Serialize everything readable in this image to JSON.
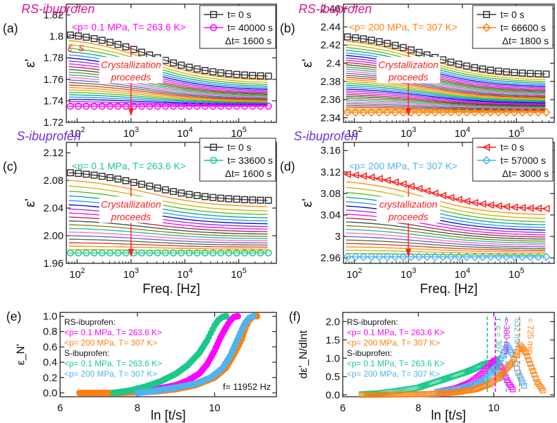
{
  "figure": {
    "colors": {
      "rs": "#e4148c",
      "s": "#7030e0",
      "magenta": "#ff00ff",
      "orange": "#ff7f0e",
      "green": "#19c98a",
      "skyblue": "#4fb3f0",
      "arrow": "#ff2020",
      "text_red": "#ff2020"
    }
  },
  "chart_data": [
    {
      "id": "a",
      "panel_label": "(a)",
      "type": "line",
      "title": "RS-ibuprofen",
      "condition": "<p= 0.1 MPa, T= 263.6 K>",
      "xlabel": "",
      "ylabel": "ε'",
      "xscale": "log",
      "xlim": [
        63,
        500000
      ],
      "ylim": [
        1.72,
        1.83
      ],
      "xticks": [
        {
          "v": 100,
          "b": "10",
          "e": "2"
        },
        {
          "v": 1000,
          "b": "10",
          "e": "3"
        },
        {
          "v": 10000,
          "b": "10",
          "e": "4"
        },
        {
          "v": 100000,
          "b": "10",
          "e": "5"
        }
      ],
      "yticks": [
        {
          "v": 1.72,
          "t": "1.72"
        },
        {
          "v": 1.74,
          "t": "1.74"
        },
        {
          "v": 1.76,
          "t": "1.76"
        },
        {
          "v": 1.78,
          "t": "1.78"
        },
        {
          "v": 1.8,
          "t": "1.8"
        },
        {
          "v": 1.82,
          "t": "1.82"
        }
      ],
      "legend": [
        {
          "label": "t= 0 s",
          "marker": "square",
          "color": "#333333"
        },
        {
          "label": "t= 40000 s",
          "marker": "circle",
          "color": "#ff00ff"
        },
        {
          "label": "Δt= 1600 s",
          "marker": "none"
        }
      ],
      "annotations": [
        "ε_s",
        "Crystallization",
        "proceeds"
      ],
      "series": [
        {
          "name": "t= 0 s",
          "marker": "square",
          "color": "#333333",
          "y_low": 1.805,
          "y_high": 1.762
        },
        {
          "name": "t= 40000 s",
          "marker": "circle",
          "color": "#ff00ff",
          "y_low": 1.735,
          "y_high": 1.735
        }
      ],
      "intermediate_curves": 24
    },
    {
      "id": "b",
      "panel_label": "(b)",
      "type": "line",
      "title": "RS-ibuprofen",
      "condition": "<p= 200 MPa, T= 307 K>",
      "xlabel": "",
      "ylabel": "ε'",
      "xscale": "log",
      "xlim": [
        63,
        500000
      ],
      "ylim": [
        2.335,
        2.465
      ],
      "xticks": [
        {
          "v": 100,
          "b": "10",
          "e": "2"
        },
        {
          "v": 1000,
          "b": "10",
          "e": "3"
        },
        {
          "v": 10000,
          "b": "10",
          "e": "4"
        },
        {
          "v": 100000,
          "b": "10",
          "e": "5"
        }
      ],
      "yticks": [
        {
          "v": 2.34,
          "t": "2.34"
        },
        {
          "v": 2.36,
          "t": "2.36"
        },
        {
          "v": 2.38,
          "t": "2.38"
        },
        {
          "v": 2.4,
          "t": "2.4"
        },
        {
          "v": 2.42,
          "t": "2.42"
        },
        {
          "v": 2.44,
          "t": "2.44"
        },
        {
          "v": 2.46,
          "t": "2.46"
        }
      ],
      "legend": [
        {
          "label": "t= 0 s",
          "marker": "square",
          "color": "#333333"
        },
        {
          "label": "t= 66600 s",
          "marker": "diamond",
          "color": "#ff7f0e"
        },
        {
          "label": "Δt= 1800 s",
          "marker": "none"
        }
      ],
      "annotations": [
        "Crystallization",
        "proceeds"
      ],
      "series": [
        {
          "name": "t= 0 s",
          "marker": "square",
          "color": "#333333",
          "y_low": 2.433,
          "y_high": 2.387
        },
        {
          "name": "t= 66600 s",
          "marker": "diamond",
          "color": "#ff7f0e",
          "y_low": 2.346,
          "y_high": 2.346
        }
      ],
      "intermediate_curves": 34
    },
    {
      "id": "c",
      "panel_label": "(c)",
      "type": "line",
      "title": "S-ibuprofen",
      "condition": "<p= 0.1 MPa, T= 263.6 K>",
      "xlabel": "Freq. [Hz]",
      "ylabel": "ε'",
      "xscale": "log",
      "xlim": [
        63,
        500000
      ],
      "ylim": [
        1.96,
        2.135
      ],
      "xticks": [
        {
          "v": 100,
          "b": "10",
          "e": "2"
        },
        {
          "v": 1000,
          "b": "10",
          "e": "3"
        },
        {
          "v": 10000,
          "b": "10",
          "e": "4"
        },
        {
          "v": 100000,
          "b": "10",
          "e": "5"
        }
      ],
      "yticks": [
        {
          "v": 1.96,
          "t": "1.96"
        },
        {
          "v": 2.0,
          "t": "2.00"
        },
        {
          "v": 2.04,
          "t": "2.04"
        },
        {
          "v": 2.08,
          "t": "2.08"
        },
        {
          "v": 2.12,
          "t": "2.12"
        }
      ],
      "legend": [
        {
          "label": "t= 0 s",
          "marker": "square",
          "color": "#333333"
        },
        {
          "label": "t= 33600 s",
          "marker": "circle",
          "color": "#19c98a"
        },
        {
          "label": "Δt= 1600 s",
          "marker": "none"
        }
      ],
      "annotations": [
        "Crystallization",
        "proceeds"
      ],
      "series": [
        {
          "name": "t= 0 s",
          "marker": "square",
          "color": "#333333",
          "y_low": 2.095,
          "y_high": 2.05
        },
        {
          "name": "t= 33600 s",
          "marker": "circle",
          "color": "#19c98a",
          "y_low": 1.975,
          "y_high": 1.975
        }
      ],
      "intermediate_curves": 18
    },
    {
      "id": "d",
      "panel_label": "(d)",
      "type": "line",
      "title": "S-ibuprofen",
      "condition": "<p= 200 MPa, T= 307 K>",
      "xlabel": "Freq. [Hz]",
      "ylabel": "ε'",
      "xscale": "log",
      "xlim": [
        63,
        500000
      ],
      "ylim": [
        2.95,
        3.175
      ],
      "xticks": [
        {
          "v": 100,
          "b": "10",
          "e": "2"
        },
        {
          "v": 1000,
          "b": "10",
          "e": "3"
        },
        {
          "v": 10000,
          "b": "10",
          "e": "4"
        },
        {
          "v": 100000,
          "b": "10",
          "e": "5"
        }
      ],
      "yticks": [
        {
          "v": 2.96,
          "t": "2.96"
        },
        {
          "v": 3.0,
          "t": "3"
        },
        {
          "v": 3.04,
          "t": "3.04"
        },
        {
          "v": 3.08,
          "t": "3.08"
        },
        {
          "v": 3.12,
          "t": "3.12"
        },
        {
          "v": 3.16,
          "t": "3.16"
        }
      ],
      "legend": [
        {
          "label": "t= 0 s",
          "marker": "triangle-left",
          "color": "#ff2020"
        },
        {
          "label": "t= 57000 s",
          "marker": "diamond",
          "color": "#4fb3f0"
        },
        {
          "label": "Δt= 3000 s",
          "marker": "none"
        }
      ],
      "annotations": [
        "crystallization",
        "proceeds"
      ],
      "series": [
        {
          "name": "t= 0 s",
          "marker": "triangle-left",
          "color": "#ff2020",
          "y_low": 3.122,
          "y_high": 3.05
        },
        {
          "name": "t= 57000 s",
          "marker": "diamond",
          "color": "#4fb3f0",
          "y_low": 2.962,
          "y_high": 2.962
        }
      ],
      "intermediate_curves": 19
    },
    {
      "id": "e",
      "panel_label": "(e)",
      "type": "scatter",
      "xlabel": "ln [t/s]",
      "ylabel": "ε_N'",
      "xlim": [
        6,
        11.6
      ],
      "ylim": [
        -0.05,
        1.05
      ],
      "xticks": [
        {
          "v": 6,
          "t": "6"
        },
        {
          "v": 8,
          "t": "8"
        },
        {
          "v": 10,
          "t": "10"
        }
      ],
      "yticks": [
        {
          "v": 0.0,
          "t": "0.0"
        },
        {
          "v": 0.2,
          "t": "0.2"
        },
        {
          "v": 0.4,
          "t": "0.4"
        },
        {
          "v": 0.6,
          "t": "0.6"
        },
        {
          "v": 0.8,
          "t": "0.8"
        },
        {
          "v": 1.0,
          "t": "1.0"
        }
      ],
      "legend_text": [
        "RS-ibuprofen:",
        "<p= 0.1 MPa, T= 263.6 K>",
        "<p= 200 MPa, T= 307 K>",
        "S-ibuprofen:",
        "<p= 0.1 MPa, T= 263.6 K>",
        "<p= 200 MPa, T= 307 K>"
      ],
      "annotations": [
        "f= 11952 Hz"
      ],
      "series": [
        {
          "name": "RS 0.1 MPa, 263.6 K",
          "color": "#ff00ff",
          "x": [
            7.38,
            7.8,
            8.2,
            8.6,
            9.0,
            9.3,
            9.6,
            9.8,
            10.0,
            10.15,
            10.3,
            10.4,
            10.5,
            10.6
          ],
          "y": [
            0.0,
            0.01,
            0.03,
            0.06,
            0.1,
            0.16,
            0.25,
            0.37,
            0.55,
            0.72,
            0.86,
            0.94,
            0.99,
            1.0
          ]
        },
        {
          "name": "RS 200 MPa, 307 K",
          "color": "#ff7f0e",
          "x": [
            6.5,
            7.5,
            8.0,
            8.5,
            9.0,
            9.5,
            10.0,
            10.3,
            10.5,
            10.7,
            10.8,
            10.9,
            11.0,
            11.1
          ],
          "y": [
            0.0,
            0.0,
            0.01,
            0.02,
            0.05,
            0.1,
            0.2,
            0.33,
            0.5,
            0.7,
            0.85,
            0.95,
            1.0,
            1.0
          ]
        },
        {
          "name": "S 0.1 MPa, 263.6 K",
          "color": "#19c98a",
          "x": [
            7.38,
            7.8,
            8.2,
            8.6,
            9.0,
            9.3,
            9.6,
            9.8,
            9.9,
            10.0,
            10.1,
            10.2,
            10.3
          ],
          "y": [
            0.0,
            0.03,
            0.08,
            0.15,
            0.25,
            0.36,
            0.52,
            0.68,
            0.78,
            0.88,
            0.95,
            0.99,
            1.0
          ]
        },
        {
          "name": "S 200 MPa, 307 K",
          "color": "#4fb3f0",
          "x": [
            8.0,
            8.5,
            9.0,
            9.5,
            9.9,
            10.2,
            10.4,
            10.55,
            10.7,
            10.8,
            10.9,
            11.0
          ],
          "y": [
            0.0,
            0.03,
            0.07,
            0.12,
            0.2,
            0.32,
            0.48,
            0.65,
            0.82,
            0.92,
            0.98,
            1.0
          ]
        }
      ]
    },
    {
      "id": "f",
      "panel_label": "(f)",
      "type": "scatter",
      "xlabel": "ln [t/s]",
      "ylabel": "dε'_N/dlnt",
      "xlim": [
        6,
        11.6
      ],
      "ylim": [
        -0.05,
        2.25
      ],
      "xticks": [
        {
          "v": 6,
          "t": "6"
        },
        {
          "v": 8,
          "t": "8"
        },
        {
          "v": 10,
          "t": "10"
        }
      ],
      "yticks": [
        {
          "v": 0.0,
          "t": "0.0"
        },
        {
          "v": 0.5,
          "t": "0.5"
        },
        {
          "v": 1.0,
          "t": "1.0"
        },
        {
          "v": 1.5,
          "t": "1.5"
        },
        {
          "v": 2.0,
          "t": "2.0"
        }
      ],
      "legend_text": [
        "RS-ibuprofen:",
        "<p= 0.1 MPa, T= 263.6 K>",
        "<p= 200 MPa, T= 307 K>",
        "S-ibuprofen:",
        "<p= 0.1 MPa, T= 263.6 K>",
        "<p= 200 MPa, T= 307 K>"
      ],
      "tau_labels": [
        {
          "x": 9.83,
          "label": "τ_c = 307 min",
          "color": "#19c98a"
        },
        {
          "x": 10.04,
          "label": "= 380 min",
          "color": "#ff00ff"
        },
        {
          "x": 10.33,
          "label": "532 min",
          "color": "#4fb3f0"
        },
        {
          "x": 10.68,
          "label": "= 725 min",
          "color": "#ff7f0e"
        }
      ],
      "series": [
        {
          "name": "S 0.1 MPa, 263.6 K",
          "color": "#19c98a",
          "x": [
            6.5,
            7.0,
            7.38,
            7.7,
            8.0,
            8.3,
            8.6,
            8.9,
            9.2,
            9.5,
            9.7,
            9.85,
            10.0,
            10.15
          ],
          "y": [
            0.02,
            0.05,
            0.1,
            0.15,
            0.2,
            0.3,
            0.4,
            0.5,
            0.6,
            0.72,
            0.82,
            0.87,
            0.72,
            0.45
          ]
        },
        {
          "name": "RS 0.1 MPa, 263.6 K",
          "color": "#ff00ff",
          "x": [
            8.5,
            9.0,
            9.4,
            9.7,
            9.9,
            10.05,
            10.2,
            10.35,
            10.5
          ],
          "y": [
            0.08,
            0.18,
            0.35,
            0.6,
            0.85,
            0.95,
            0.75,
            0.4,
            0.15
          ]
        },
        {
          "name": "S 200 MPa, 307 K",
          "color": "#4fb3f0",
          "x": [
            8.5,
            9.0,
            9.5,
            9.8,
            10.0,
            10.2,
            10.35,
            10.5,
            10.65,
            10.8
          ],
          "y": [
            0.08,
            0.15,
            0.28,
            0.45,
            0.7,
            1.0,
            1.35,
            1.1,
            0.6,
            0.25
          ]
        },
        {
          "name": "RS 200 MPa, 307 K",
          "color": "#ff7f0e",
          "x": [
            6.5,
            7.5,
            8.5,
            9.0,
            9.5,
            9.9,
            10.2,
            10.5,
            10.7,
            10.85,
            11.0,
            11.15,
            11.3
          ],
          "y": [
            0.0,
            0.01,
            0.03,
            0.07,
            0.15,
            0.3,
            0.55,
            0.9,
            1.35,
            1.15,
            0.75,
            0.35,
            0.12
          ]
        }
      ]
    }
  ]
}
